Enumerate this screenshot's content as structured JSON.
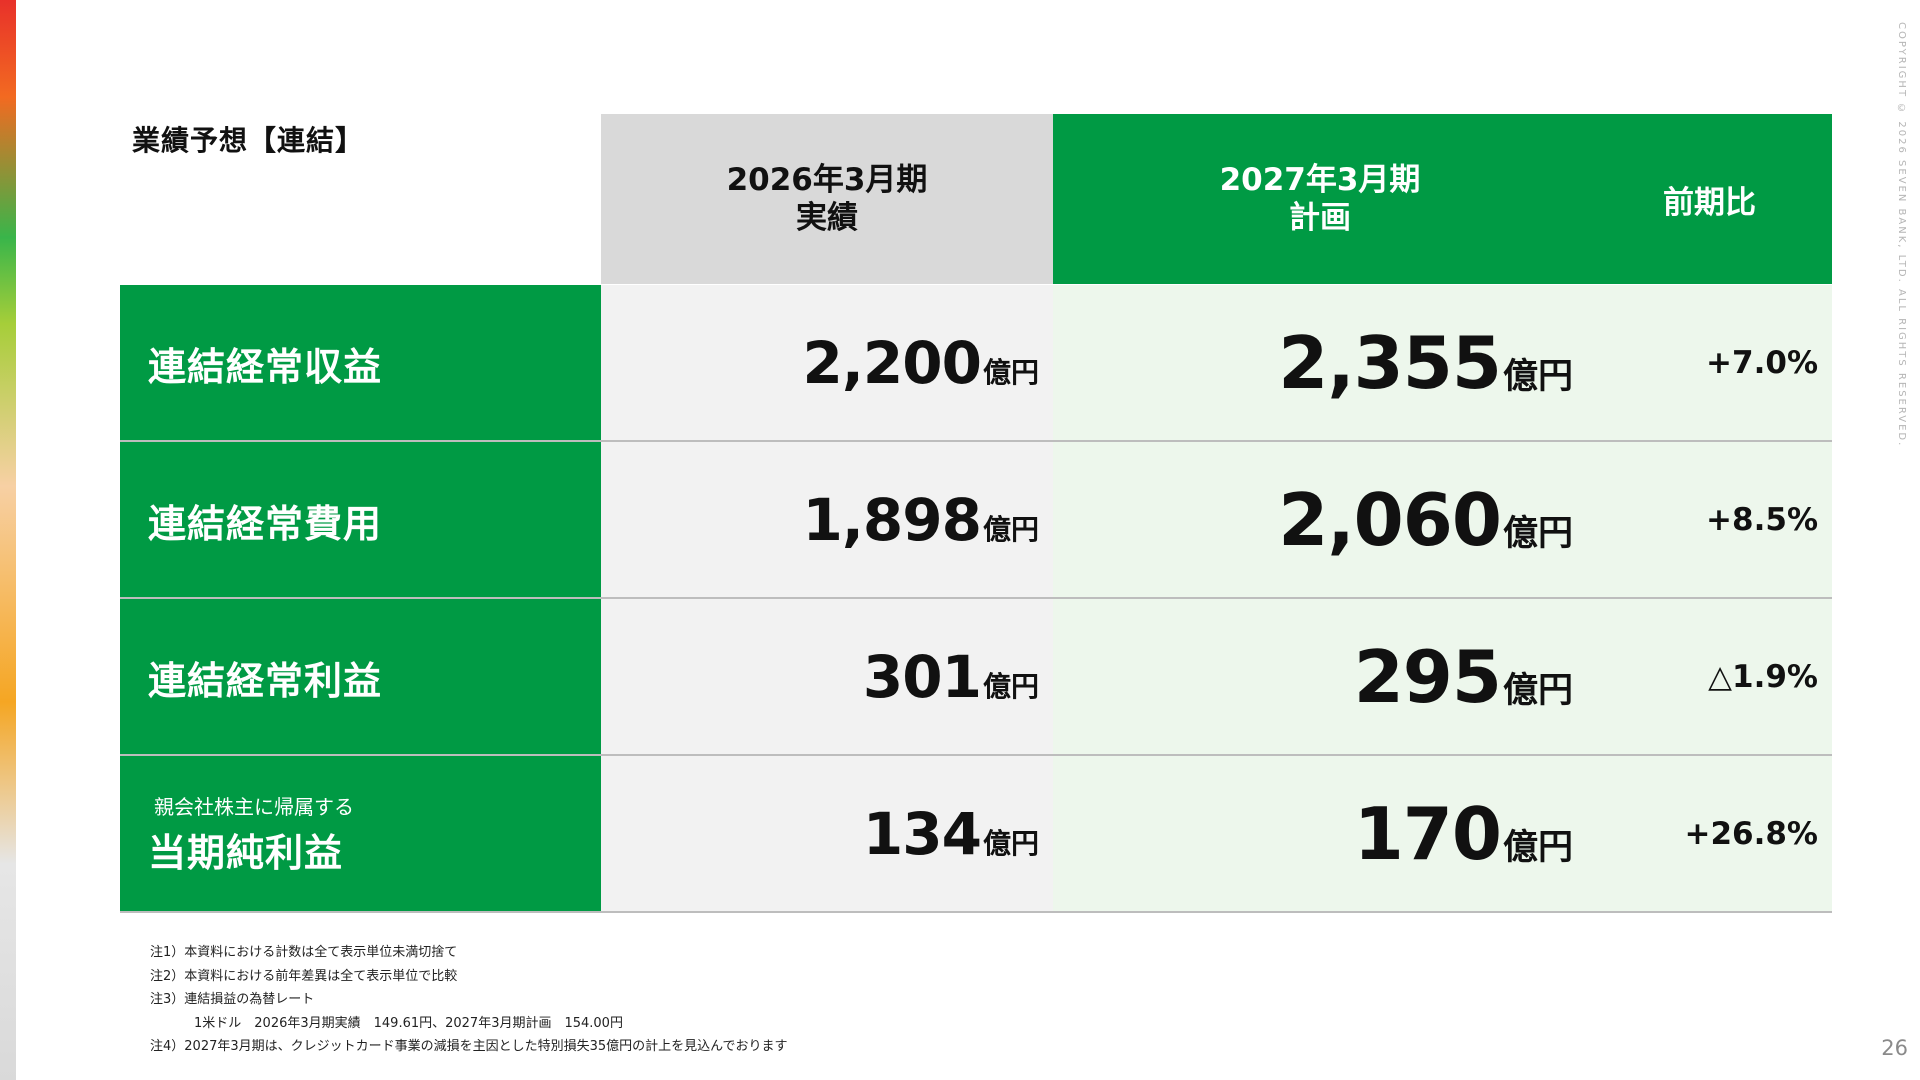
{
  "page": {
    "title": "業績予想【連結】",
    "copyright": "COPYRIGHT © 2026 SEVEN BANK, LTD. ALL RIGHTS RESERVED.",
    "page_number": "26"
  },
  "table": {
    "headers": {
      "actual_line1": "2026年3月期",
      "actual_line2": "実績",
      "plan_line1": "2027年3月期",
      "plan_line2": "計画",
      "ratio": "前期比"
    },
    "unit": "億円",
    "rows": [
      {
        "sublabel": "",
        "label": "連結経常収益",
        "actual": "2,200",
        "plan": "2,355",
        "ratio": "+7.0%"
      },
      {
        "sublabel": "",
        "label": "連結経常費用",
        "actual": "1,898",
        "plan": "2,060",
        "ratio": "+8.5%"
      },
      {
        "sublabel": "",
        "label": "連結経常利益",
        "actual": "301",
        "plan": "295",
        "ratio": "△1.9%"
      },
      {
        "sublabel": "親会社株主に帰属する",
        "label": "当期純利益",
        "actual": "134",
        "plan": "170",
        "ratio": "+26.8%"
      }
    ]
  },
  "notes": [
    "注1）本資料における計数は全て表示単位未満切捨て",
    "注2）本資料における前年差異は全て表示単位で比較",
    "注3）連結損益の為替レート",
    "1米ドル　2026年3月期実績　149.61円、2027年3月期計画　154.00円",
    "注4）2027年3月期は、クレジットカード事業の減損を主因とした特別損失35億円の計上を見込んでおります"
  ],
  "colors": {
    "brand_green": "#009a44",
    "light_green_cell": "#edf7ec",
    "gray_header": "#d9d9d9",
    "gray_cell": "#f2f2f2"
  }
}
